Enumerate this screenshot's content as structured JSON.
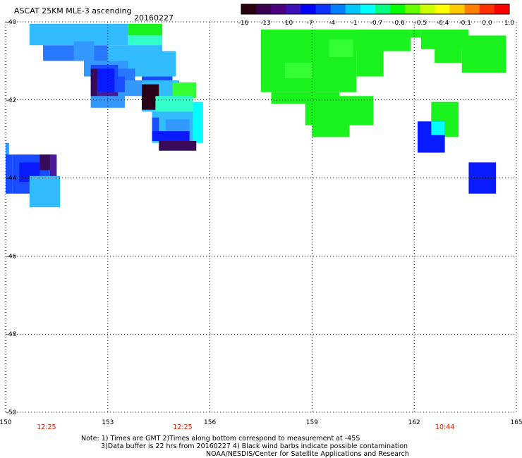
{
  "header": {
    "title": "ASCAT 25KM MLE-3 ascending",
    "date": "20160227"
  },
  "colorbar": {
    "colors": [
      "#2a0010",
      "#3a0050",
      "#4b0082",
      "#3b0fb8",
      "#0000ff",
      "#0a33ff",
      "#0080ff",
      "#00c8ff",
      "#00ffff",
      "#00ff80",
      "#00ff00",
      "#66ff00",
      "#ccff00",
      "#ffff00",
      "#ffc800",
      "#ff8000",
      "#ff3000",
      "#ff0000"
    ],
    "tick_labels": [
      "-16",
      "-13",
      "-10",
      "-7",
      "-4",
      "-1",
      "-0.7",
      "-0.6",
      "-0.5",
      "-0.4",
      "-0.1",
      "0.0",
      "1.0"
    ]
  },
  "map": {
    "lon_range": [
      150,
      165
    ],
    "lat_range": [
      -40,
      -50
    ],
    "lon_labels": [
      "150",
      "153",
      "156",
      "159",
      "162",
      "165"
    ],
    "lat_labels": [
      "-40",
      "-42",
      "-44",
      "-46",
      "-48",
      "-50"
    ],
    "time_labels": [
      {
        "lon": 151.2,
        "text": "12:25"
      },
      {
        "lon": 155.2,
        "text": "12:25"
      },
      {
        "lon": 162.9,
        "text": "10:44"
      }
    ],
    "time_color": "#cc2200",
    "grid_color": "#000000",
    "cell_colors": {
      "dark": "#2a0018",
      "darkpurple": "#3a0a5a",
      "purple": "#4b1a9a",
      "blue": "#0a1aff",
      "blue2": "#1a4cff",
      "mid": "#2878ff",
      "lightblue": "#3399ff",
      "sky": "#33bbff",
      "cyan": "#00ffff",
      "aqua": "#33ffcc",
      "green": "#19f21c",
      "green2": "#33ff33"
    },
    "cells": [
      {
        "lon": [
          150.7,
          153.6
        ],
        "lat": [
          -40.05,
          -40.6
        ],
        "c": "sky"
      },
      {
        "lon": [
          153.6,
          154.6
        ],
        "lat": [
          -40.05,
          -40.35
        ],
        "c": "green"
      },
      {
        "lon": [
          153.6,
          154.6
        ],
        "lat": [
          -40.35,
          -40.75
        ],
        "c": "aqua"
      },
      {
        "lon": [
          151.1,
          153.0
        ],
        "lat": [
          -40.6,
          -41.0
        ],
        "c": "mid"
      },
      {
        "lon": [
          152.0,
          152.6
        ],
        "lat": [
          -40.5,
          -41.0
        ],
        "c": "lightblue"
      },
      {
        "lon": [
          153.0,
          154.6
        ],
        "lat": [
          -40.6,
          -41.0
        ],
        "c": "sky"
      },
      {
        "lon": [
          153.3,
          155.0
        ],
        "lat": [
          -40.75,
          -41.4
        ],
        "c": "sky"
      },
      {
        "lon": [
          152.3,
          153.6
        ],
        "lat": [
          -41.0,
          -41.4
        ],
        "c": "lightblue"
      },
      {
        "lon": [
          152.5,
          153.8
        ],
        "lat": [
          -41.2,
          -41.75
        ],
        "c": "mid"
      },
      {
        "lon": [
          152.5,
          153.5
        ],
        "lat": [
          -41.75,
          -42.2
        ],
        "c": "lightblue"
      },
      {
        "lon": [
          152.5,
          153.3
        ],
        "lat": [
          -41.1,
          -41.5
        ],
        "c": "blue2"
      },
      {
        "lon": [
          152.7,
          153.2
        ],
        "lat": [
          -41.2,
          -41.8
        ],
        "c": "blue"
      },
      {
        "lon": [
          153.2,
          153.5
        ],
        "lat": [
          -41.4,
          -41.8
        ],
        "c": "blue2"
      },
      {
        "lon": [
          152.5,
          152.7
        ],
        "lat": [
          -41.2,
          -41.9
        ],
        "c": "darkpurple"
      },
      {
        "lon": [
          152.7,
          153.3
        ],
        "lat": [
          -41.8,
          -41.9
        ],
        "c": "purple"
      },
      {
        "lon": [
          153.5,
          154.0
        ],
        "lat": [
          -41.5,
          -41.9
        ],
        "c": "lightblue"
      },
      {
        "lon": [
          154.0,
          154.9
        ],
        "lat": [
          -41.4,
          -41.7
        ],
        "c": "blue2"
      },
      {
        "lon": [
          154.0,
          155.1
        ],
        "lat": [
          -41.5,
          -42.3
        ],
        "c": "sky"
      },
      {
        "lon": [
          154.9,
          155.6
        ],
        "lat": [
          -41.55,
          -41.95
        ],
        "c": "green2"
      },
      {
        "lon": [
          154.0,
          154.5
        ],
        "lat": [
          -41.6,
          -42.25
        ],
        "c": "dark"
      },
      {
        "lon": [
          154.4,
          155.5
        ],
        "lat": [
          -41.9,
          -42.45
        ],
        "c": "aqua"
      },
      {
        "lon": [
          155.5,
          155.8
        ],
        "lat": [
          -42.05,
          -43.1
        ],
        "c": "cyan"
      },
      {
        "lon": [
          154.3,
          155.5
        ],
        "lat": [
          -42.3,
          -43.1
        ],
        "c": "sky"
      },
      {
        "lon": [
          154.3,
          154.5
        ],
        "lat": [
          -42.45,
          -43.05
        ],
        "c": "blue2"
      },
      {
        "lon": [
          154.3,
          155.4
        ],
        "lat": [
          -42.8,
          -43.05
        ],
        "c": "blue"
      },
      {
        "lon": [
          154.7,
          155.4
        ],
        "lat": [
          -42.5,
          -42.8
        ],
        "c": "lightblue"
      },
      {
        "lon": [
          154.5,
          155.6
        ],
        "lat": [
          -43.05,
          -43.3
        ],
        "c": "darkpurple"
      },
      {
        "lon": [
          150.0,
          150.1
        ],
        "lat": [
          -43.1,
          -44.4
        ],
        "c": "lightblue"
      },
      {
        "lon": [
          150.0,
          150.2
        ],
        "lat": [
          -43.4,
          -44.4
        ],
        "c": "blue2"
      },
      {
        "lon": [
          150.2,
          151.3
        ],
        "lat": [
          -43.4,
          -44.4
        ],
        "c": "blue2"
      },
      {
        "lon": [
          151.0,
          151.4
        ],
        "lat": [
          -43.4,
          -43.8
        ],
        "c": "darkpurple"
      },
      {
        "lon": [
          151.3,
          151.5
        ],
        "lat": [
          -43.4,
          -44.3
        ],
        "c": "purple"
      },
      {
        "lon": [
          150.4,
          151.0
        ],
        "lat": [
          -43.6,
          -44.1
        ],
        "c": "blue"
      },
      {
        "lon": [
          150.7,
          151.6
        ],
        "lat": [
          -43.95,
          -44.75
        ],
        "c": "sky"
      },
      {
        "lon": [
          157.5,
          160.3
        ],
        "lat": [
          -40.2,
          -41.8
        ],
        "c": "green"
      },
      {
        "lon": [
          157.5,
          161.9
        ],
        "lat": [
          -40.2,
          -40.75
        ],
        "c": "green"
      },
      {
        "lon": [
          157.8,
          159.8
        ],
        "lat": [
          -41.8,
          -42.1
        ],
        "c": "green"
      },
      {
        "lon": [
          158.8,
          160.8
        ],
        "lat": [
          -41.9,
          -42.65
        ],
        "c": "green"
      },
      {
        "lon": [
          159.0,
          160.1
        ],
        "lat": [
          -42.6,
          -42.95
        ],
        "c": "green"
      },
      {
        "lon": [
          160.3,
          161.1
        ],
        "lat": [
          -40.6,
          -41.4
        ],
        "c": "green"
      },
      {
        "lon": [
          161.9,
          162.2
        ],
        "lat": [
          -40.2,
          -40.4
        ],
        "c": "green"
      },
      {
        "lon": [
          162.2,
          163.6
        ],
        "lat": [
          -40.2,
          -40.7
        ],
        "c": "green"
      },
      {
        "lon": [
          162.6,
          163.4
        ],
        "lat": [
          -40.5,
          -41.05
        ],
        "c": "green"
      },
      {
        "lon": [
          163.4,
          164.7
        ],
        "lat": [
          -40.35,
          -41.3
        ],
        "c": "green"
      },
      {
        "lon": [
          158.2,
          159.0
        ],
        "lat": [
          -41.05,
          -41.45
        ],
        "c": "green2"
      },
      {
        "lon": [
          159.5,
          160.2
        ],
        "lat": [
          -40.45,
          -40.9
        ],
        "c": "green2"
      },
      {
        "lon": [
          162.5,
          163.3
        ],
        "lat": [
          -42.05,
          -42.95
        ],
        "c": "green"
      },
      {
        "lon": [
          162.1,
          162.9
        ],
        "lat": [
          -42.55,
          -43.35
        ],
        "c": "blue"
      },
      {
        "lon": [
          162.5,
          162.9
        ],
        "lat": [
          -42.55,
          -42.9
        ],
        "c": "cyan"
      },
      {
        "lon": [
          163.6,
          164.4
        ],
        "lat": [
          -43.6,
          -44.4
        ],
        "c": "blue"
      }
    ]
  },
  "notes": {
    "line1": "Note: 1) Times are GMT 2)Times along bottom correspond to measurement at -45S",
    "line2": "3)Data buffer is 22 hrs from 20160227 4) Black wind barbs indicate possible contamination",
    "line3": "NOAA/NESDIS/Center for Satellite Applications and Research"
  }
}
